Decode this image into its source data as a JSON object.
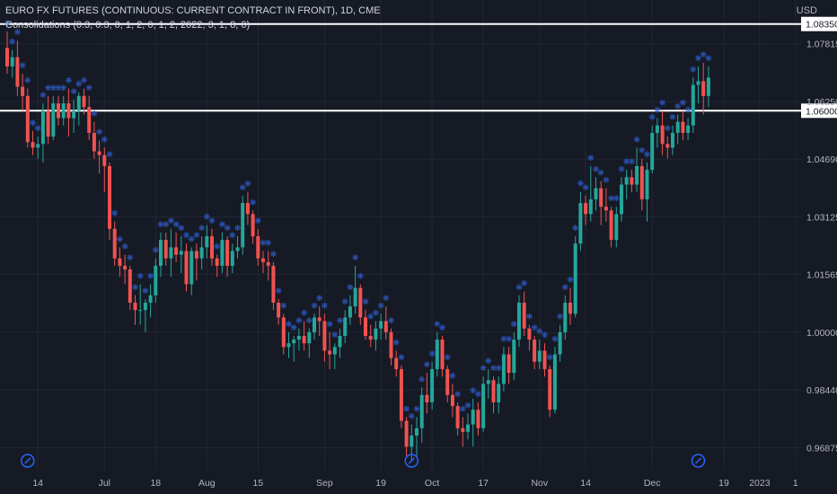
{
  "header": {
    "title": "EURO FX FUTURES (CONTINUOUS: CURRENT CONTRACT IN FRONT), 1D, CME",
    "indicator": "Consolidations (0.3, 0.3, 0, 1, 2, 0, 1, 2, 2022, 3, 1, 8, 0)",
    "currency": "USD"
  },
  "colors": {
    "background": "#161a25",
    "up": "#26a69a",
    "down": "#ef5350",
    "marker": "#2f5fd0",
    "level_line": "#ffffff",
    "grid": "#232733"
  },
  "chart_data": {
    "type": "candlestick",
    "y_ticks": [
      "1.07815",
      "1.06250",
      "1.04690",
      "1.03125",
      "1.01565",
      "1.00000",
      "0.98440",
      "0.96875"
    ],
    "x_ticks": [
      "14",
      "Jul",
      "18",
      "Aug",
      "15",
      "Sep",
      "19",
      "Oct",
      "17",
      "Nov",
      "14",
      "Dec",
      "19",
      "2023",
      "1"
    ],
    "ylim": [
      0.9625,
      1.09
    ],
    "levels": [
      {
        "value": 1.0835,
        "label": "1.08350"
      },
      {
        "value": 1.06,
        "label": "1.06000"
      }
    ],
    "event_markers": [
      "Jun 10",
      "Sep 27",
      "Dec 14"
    ],
    "candles": [
      {
        "d": "Jun 6",
        "o": 1.077,
        "h": 1.0815,
        "l": 1.07,
        "c": 1.072
      },
      {
        "d": "Jun 7",
        "o": 1.072,
        "h": 1.0765,
        "l": 1.069,
        "c": 1.0745
      },
      {
        "d": "Jun 8",
        "o": 1.0745,
        "h": 1.079,
        "l": 1.064,
        "c": 1.0665
      },
      {
        "d": "Jun 9",
        "o": 1.0665,
        "h": 1.07,
        "l": 1.06,
        "c": 1.064
      },
      {
        "d": "Jun 10",
        "o": 1.064,
        "h": 1.066,
        "l": 1.05,
        "c": 1.0515
      },
      {
        "d": "Jun 13",
        "o": 1.0515,
        "h": 1.0545,
        "l": 1.048,
        "c": 1.05
      },
      {
        "d": "Jun 14",
        "o": 1.05,
        "h": 1.053,
        "l": 1.047,
        "c": 1.051
      },
      {
        "d": "Jun 15",
        "o": 1.051,
        "h": 1.062,
        "l": 1.046,
        "c": 1.06
      },
      {
        "d": "Jun 16",
        "o": 1.06,
        "h": 1.064,
        "l": 1.051,
        "c": 1.053
      },
      {
        "d": "Jun 17",
        "o": 1.053,
        "h": 1.064,
        "l": 1.052,
        "c": 1.062
      },
      {
        "d": "Jun 20",
        "o": 1.062,
        "h": 1.064,
        "l": 1.056,
        "c": 1.058
      },
      {
        "d": "Jun 21",
        "o": 1.058,
        "h": 1.064,
        "l": 1.056,
        "c": 1.062
      },
      {
        "d": "Jun 22",
        "o": 1.062,
        "h": 1.066,
        "l": 1.053,
        "c": 1.058
      },
      {
        "d": "Jun 23",
        "o": 1.058,
        "h": 1.063,
        "l": 1.054,
        "c": 1.06
      },
      {
        "d": "Jun 24",
        "o": 1.06,
        "h": 1.065,
        "l": 1.056,
        "c": 1.064
      },
      {
        "d": "Jun 27",
        "o": 1.064,
        "h": 1.066,
        "l": 1.059,
        "c": 1.061
      },
      {
        "d": "Jun 28",
        "o": 1.061,
        "h": 1.064,
        "l": 1.052,
        "c": 1.054
      },
      {
        "d": "Jun 29",
        "o": 1.054,
        "h": 1.057,
        "l": 1.047,
        "c": 1.049
      },
      {
        "d": "Jun 30",
        "o": 1.049,
        "h": 1.052,
        "l": 1.043,
        "c": 1.048
      },
      {
        "d": "Jul 1",
        "o": 1.048,
        "h": 1.05,
        "l": 1.038,
        "c": 1.045
      },
      {
        "d": "Jul 5",
        "o": 1.045,
        "h": 1.046,
        "l": 1.025,
        "c": 1.028
      },
      {
        "d": "Jul 6",
        "o": 1.028,
        "h": 1.03,
        "l": 1.018,
        "c": 1.02
      },
      {
        "d": "Jul 7",
        "o": 1.02,
        "h": 1.023,
        "l": 1.015,
        "c": 1.018
      },
      {
        "d": "Jul 8",
        "o": 1.018,
        "h": 1.021,
        "l": 1.013,
        "c": 1.017
      },
      {
        "d": "Jul 11",
        "o": 1.017,
        "h": 1.018,
        "l": 1.006,
        "c": 1.008
      },
      {
        "d": "Jul 12",
        "o": 1.008,
        "h": 1.01,
        "l": 1.002,
        "c": 1.006
      },
      {
        "d": "Jul 13",
        "o": 1.006,
        "h": 1.013,
        "l": 1.002,
        "c": 1.006
      },
      {
        "d": "Jul 14",
        "o": 1.006,
        "h": 1.009,
        "l": 1.0,
        "c": 1.008
      },
      {
        "d": "Jul 15",
        "o": 1.008,
        "h": 1.013,
        "l": 1.004,
        "c": 1.01
      },
      {
        "d": "Jul 18",
        "o": 1.01,
        "h": 1.02,
        "l": 1.008,
        "c": 1.018
      },
      {
        "d": "Jul 19",
        "o": 1.018,
        "h": 1.027,
        "l": 1.015,
        "c": 1.025
      },
      {
        "d": "Jul 20",
        "o": 1.025,
        "h": 1.027,
        "l": 1.018,
        "c": 1.02
      },
      {
        "d": "Jul 21",
        "o": 1.02,
        "h": 1.028,
        "l": 1.015,
        "c": 1.023
      },
      {
        "d": "Jul 22",
        "o": 1.023,
        "h": 1.027,
        "l": 1.019,
        "c": 1.021
      },
      {
        "d": "Jul 25",
        "o": 1.021,
        "h": 1.026,
        "l": 1.016,
        "c": 1.022
      },
      {
        "d": "Jul 26",
        "o": 1.022,
        "h": 1.024,
        "l": 1.011,
        "c": 1.013
      },
      {
        "d": "Jul 27",
        "o": 1.013,
        "h": 1.023,
        "l": 1.01,
        "c": 1.022
      },
      {
        "d": "Jul 28",
        "o": 1.022,
        "h": 1.024,
        "l": 1.014,
        "c": 1.02
      },
      {
        "d": "Jul 29",
        "o": 1.02,
        "h": 1.026,
        "l": 1.017,
        "c": 1.023
      },
      {
        "d": "Aug 1",
        "o": 1.023,
        "h": 1.029,
        "l": 1.02,
        "c": 1.026
      },
      {
        "d": "Aug 2",
        "o": 1.026,
        "h": 1.028,
        "l": 1.018,
        "c": 1.02
      },
      {
        "d": "Aug 3",
        "o": 1.02,
        "h": 1.021,
        "l": 1.015,
        "c": 1.018
      },
      {
        "d": "Aug 4",
        "o": 1.018,
        "h": 1.027,
        "l": 1.016,
        "c": 1.025
      },
      {
        "d": "Aug 5",
        "o": 1.025,
        "h": 1.026,
        "l": 1.015,
        "c": 1.018
      },
      {
        "d": "Aug 8",
        "o": 1.018,
        "h": 1.024,
        "l": 1.016,
        "c": 1.022
      },
      {
        "d": "Aug 9",
        "o": 1.022,
        "h": 1.026,
        "l": 1.02,
        "c": 1.023
      },
      {
        "d": "Aug 10",
        "o": 1.023,
        "h": 1.037,
        "l": 1.021,
        "c": 1.035
      },
      {
        "d": "Aug 11",
        "o": 1.035,
        "h": 1.038,
        "l": 1.029,
        "c": 1.032
      },
      {
        "d": "Aug 12",
        "o": 1.032,
        "h": 1.033,
        "l": 1.024,
        "c": 1.026
      },
      {
        "d": "Aug 15",
        "o": 1.026,
        "h": 1.028,
        "l": 1.018,
        "c": 1.02
      },
      {
        "d": "Aug 16",
        "o": 1.02,
        "h": 1.022,
        "l": 1.016,
        "c": 1.019
      },
      {
        "d": "Aug 17",
        "o": 1.019,
        "h": 1.022,
        "l": 1.014,
        "c": 1.018
      },
      {
        "d": "Aug 18",
        "o": 1.018,
        "h": 1.019,
        "l": 1.006,
        "c": 1.008
      },
      {
        "d": "Aug 19",
        "o": 1.008,
        "h": 1.009,
        "l": 1.002,
        "c": 1.004
      },
      {
        "d": "Aug 22",
        "o": 1.004,
        "h": 1.005,
        "l": 0.994,
        "c": 0.996
      },
      {
        "d": "Aug 23",
        "o": 0.996,
        "h": 1.0,
        "l": 0.993,
        "c": 0.997
      },
      {
        "d": "Aug 24",
        "o": 0.997,
        "h": 0.999,
        "l": 0.992,
        "c": 0.998
      },
      {
        "d": "Aug 25",
        "o": 0.998,
        "h": 1.001,
        "l": 0.995,
        "c": 0.999
      },
      {
        "d": "Aug 26",
        "o": 0.999,
        "h": 1.003,
        "l": 0.995,
        "c": 0.997
      },
      {
        "d": "Aug 29",
        "o": 0.997,
        "h": 1.001,
        "l": 0.993,
        "c": 1.0
      },
      {
        "d": "Aug 30",
        "o": 1.0,
        "h": 1.005,
        "l": 0.998,
        "c": 1.004
      },
      {
        "d": "Aug 31",
        "o": 1.004,
        "h": 1.007,
        "l": 0.999,
        "c": 1.003
      },
      {
        "d": "Sep 1",
        "o": 1.003,
        "h": 1.005,
        "l": 0.992,
        "c": 0.995
      },
      {
        "d": "Sep 2",
        "o": 0.995,
        "h": 1.0,
        "l": 0.99,
        "c": 0.994
      },
      {
        "d": "Sep 6",
        "o": 0.994,
        "h": 0.997,
        "l": 0.99,
        "c": 0.996
      },
      {
        "d": "Sep 7",
        "o": 0.996,
        "h": 1.001,
        "l": 0.993,
        "c": 0.999
      },
      {
        "d": "Sep 8",
        "o": 0.999,
        "h": 1.006,
        "l": 0.997,
        "c": 1.004
      },
      {
        "d": "Sep 9",
        "o": 1.004,
        "h": 1.01,
        "l": 1.002,
        "c": 1.007
      },
      {
        "d": "Sep 12",
        "o": 1.007,
        "h": 1.018,
        "l": 1.005,
        "c": 1.012
      },
      {
        "d": "Sep 13",
        "o": 1.012,
        "h": 1.013,
        "l": 1.002,
        "c": 1.004
      },
      {
        "d": "Sep 14",
        "o": 1.004,
        "h": 1.006,
        "l": 0.998,
        "c": 0.999
      },
      {
        "d": "Sep 15",
        "o": 0.999,
        "h": 1.002,
        "l": 0.996,
        "c": 0.998
      },
      {
        "d": "Sep 16",
        "o": 0.998,
        "h": 1.003,
        "l": 0.995,
        "c": 1.001
      },
      {
        "d": "Sep 19",
        "o": 1.001,
        "h": 1.005,
        "l": 0.998,
        "c": 1.003
      },
      {
        "d": "Sep 20",
        "o": 1.003,
        "h": 1.007,
        "l": 0.998,
        "c": 1.0
      },
      {
        "d": "Sep 21",
        "o": 1.0,
        "h": 1.001,
        "l": 0.991,
        "c": 0.993
      },
      {
        "d": "Sep 22",
        "o": 0.993,
        "h": 0.995,
        "l": 0.988,
        "c": 0.99
      },
      {
        "d": "Sep 23",
        "o": 0.99,
        "h": 0.991,
        "l": 0.974,
        "c": 0.976
      },
      {
        "d": "Sep 26",
        "o": 0.976,
        "h": 0.977,
        "l": 0.966,
        "c": 0.969
      },
      {
        "d": "Sep 27",
        "o": 0.969,
        "h": 0.975,
        "l": 0.965,
        "c": 0.972
      },
      {
        "d": "Sep 28",
        "o": 0.972,
        "h": 0.977,
        "l": 0.966,
        "c": 0.974
      },
      {
        "d": "Sep 29",
        "o": 0.974,
        "h": 0.985,
        "l": 0.97,
        "c": 0.983
      },
      {
        "d": "Sep 30",
        "o": 0.983,
        "h": 0.989,
        "l": 0.978,
        "c": 0.981
      },
      {
        "d": "Oct 3",
        "o": 0.981,
        "h": 0.992,
        "l": 0.979,
        "c": 0.99
      },
      {
        "d": "Oct 4",
        "o": 0.99,
        "h": 1.0,
        "l": 0.988,
        "c": 0.998
      },
      {
        "d": "Oct 5",
        "o": 0.998,
        "h": 0.999,
        "l": 0.988,
        "c": 0.99
      },
      {
        "d": "Oct 6",
        "o": 0.99,
        "h": 0.991,
        "l": 0.981,
        "c": 0.983
      },
      {
        "d": "Oct 7",
        "o": 0.983,
        "h": 0.986,
        "l": 0.977,
        "c": 0.98
      },
      {
        "d": "Oct 10",
        "o": 0.98,
        "h": 0.981,
        "l": 0.972,
        "c": 0.974
      },
      {
        "d": "Oct 11",
        "o": 0.974,
        "h": 0.977,
        "l": 0.969,
        "c": 0.973
      },
      {
        "d": "Oct 12",
        "o": 0.973,
        "h": 0.978,
        "l": 0.971,
        "c": 0.975
      },
      {
        "d": "Oct 13",
        "o": 0.975,
        "h": 0.982,
        "l": 0.969,
        "c": 0.979
      },
      {
        "d": "Oct 14",
        "o": 0.979,
        "h": 0.981,
        "l": 0.972,
        "c": 0.974
      },
      {
        "d": "Oct 17",
        "o": 0.974,
        "h": 0.988,
        "l": 0.973,
        "c": 0.986
      },
      {
        "d": "Oct 18",
        "o": 0.986,
        "h": 0.99,
        "l": 0.982,
        "c": 0.987
      },
      {
        "d": "Oct 19",
        "o": 0.987,
        "h": 0.988,
        "l": 0.978,
        "c": 0.981
      },
      {
        "d": "Oct 20",
        "o": 0.981,
        "h": 0.988,
        "l": 0.978,
        "c": 0.986
      },
      {
        "d": "Oct 21",
        "o": 0.986,
        "h": 0.996,
        "l": 0.984,
        "c": 0.994
      },
      {
        "d": "Oct 24",
        "o": 0.994,
        "h": 0.996,
        "l": 0.986,
        "c": 0.989
      },
      {
        "d": "Oct 25",
        "o": 0.989,
        "h": 1.0,
        "l": 0.987,
        "c": 0.998
      },
      {
        "d": "Oct 26",
        "o": 0.998,
        "h": 1.01,
        "l": 0.996,
        "c": 1.008
      },
      {
        "d": "Oct 27",
        "o": 1.008,
        "h": 1.011,
        "l": 0.999,
        "c": 1.001
      },
      {
        "d": "Oct 28",
        "o": 1.001,
        "h": 1.002,
        "l": 0.995,
        "c": 0.998
      },
      {
        "d": "Oct 31",
        "o": 0.998,
        "h": 0.999,
        "l": 0.99,
        "c": 0.992
      },
      {
        "d": "Nov 1",
        "o": 0.992,
        "h": 0.998,
        "l": 0.99,
        "c": 0.995
      },
      {
        "d": "Nov 2",
        "o": 0.995,
        "h": 0.997,
        "l": 0.988,
        "c": 0.99
      },
      {
        "d": "Nov 3",
        "o": 0.99,
        "h": 0.991,
        "l": 0.977,
        "c": 0.979
      },
      {
        "d": "Nov 4",
        "o": 0.979,
        "h": 0.996,
        "l": 0.978,
        "c": 0.994
      },
      {
        "d": "Nov 7",
        "o": 0.994,
        "h": 1.002,
        "l": 0.992,
        "c": 1.0
      },
      {
        "d": "Nov 8",
        "o": 1.0,
        "h": 1.01,
        "l": 0.998,
        "c": 1.008
      },
      {
        "d": "Nov 9",
        "o": 1.008,
        "h": 1.012,
        "l": 1.002,
        "c": 1.005
      },
      {
        "d": "Nov 10",
        "o": 1.005,
        "h": 1.026,
        "l": 1.004,
        "c": 1.024
      },
      {
        "d": "Nov 11",
        "o": 1.024,
        "h": 1.038,
        "l": 1.022,
        "c": 1.035
      },
      {
        "d": "Nov 14",
        "o": 1.035,
        "h": 1.037,
        "l": 1.029,
        "c": 1.032
      },
      {
        "d": "Nov 15",
        "o": 1.032,
        "h": 1.045,
        "l": 1.03,
        "c": 1.036
      },
      {
        "d": "Nov 16",
        "o": 1.036,
        "h": 1.042,
        "l": 1.033,
        "c": 1.039
      },
      {
        "d": "Nov 17",
        "o": 1.039,
        "h": 1.041,
        "l": 1.029,
        "c": 1.034
      },
      {
        "d": "Nov 18",
        "o": 1.034,
        "h": 1.039,
        "l": 1.03,
        "c": 1.033
      },
      {
        "d": "Nov 21",
        "o": 1.033,
        "h": 1.034,
        "l": 1.023,
        "c": 1.025
      },
      {
        "d": "Nov 22",
        "o": 1.025,
        "h": 1.034,
        "l": 1.023,
        "c": 1.032
      },
      {
        "d": "Nov 23",
        "o": 1.032,
        "h": 1.042,
        "l": 1.03,
        "c": 1.04
      },
      {
        "d": "Nov 24",
        "o": 1.04,
        "h": 1.044,
        "l": 1.036,
        "c": 1.042
      },
      {
        "d": "Nov 25",
        "o": 1.042,
        "h": 1.044,
        "l": 1.038,
        "c": 1.04
      },
      {
        "d": "Nov 28",
        "o": 1.04,
        "h": 1.05,
        "l": 1.038,
        "c": 1.045
      },
      {
        "d": "Nov 29",
        "o": 1.045,
        "h": 1.047,
        "l": 1.033,
        "c": 1.036
      },
      {
        "d": "Nov 30",
        "o": 1.036,
        "h": 1.046,
        "l": 1.03,
        "c": 1.044
      },
      {
        "d": "Dec 1",
        "o": 1.044,
        "h": 1.056,
        "l": 1.043,
        "c": 1.054
      },
      {
        "d": "Dec 2",
        "o": 1.054,
        "h": 1.058,
        "l": 1.05,
        "c": 1.056
      },
      {
        "d": "Dec 5",
        "o": 1.056,
        "h": 1.06,
        "l": 1.048,
        "c": 1.051
      },
      {
        "d": "Dec 6",
        "o": 1.051,
        "h": 1.053,
        "l": 1.047,
        "c": 1.05
      },
      {
        "d": "Dec 7",
        "o": 1.05,
        "h": 1.056,
        "l": 1.048,
        "c": 1.054
      },
      {
        "d": "Dec 8",
        "o": 1.054,
        "h": 1.059,
        "l": 1.051,
        "c": 1.057
      },
      {
        "d": "Dec 9",
        "o": 1.057,
        "h": 1.06,
        "l": 1.052,
        "c": 1.054
      },
      {
        "d": "Dec 12",
        "o": 1.054,
        "h": 1.058,
        "l": 1.052,
        "c": 1.056
      },
      {
        "d": "Dec 13",
        "o": 1.056,
        "h": 1.069,
        "l": 1.054,
        "c": 1.067
      },
      {
        "d": "Dec 14",
        "o": 1.067,
        "h": 1.072,
        "l": 1.062,
        "c": 1.068
      },
      {
        "d": "Dec 15",
        "o": 1.068,
        "h": 1.073,
        "l": 1.059,
        "c": 1.064
      },
      {
        "d": "Dec 16",
        "o": 1.064,
        "h": 1.072,
        "l": 1.061,
        "c": 1.069
      }
    ]
  }
}
